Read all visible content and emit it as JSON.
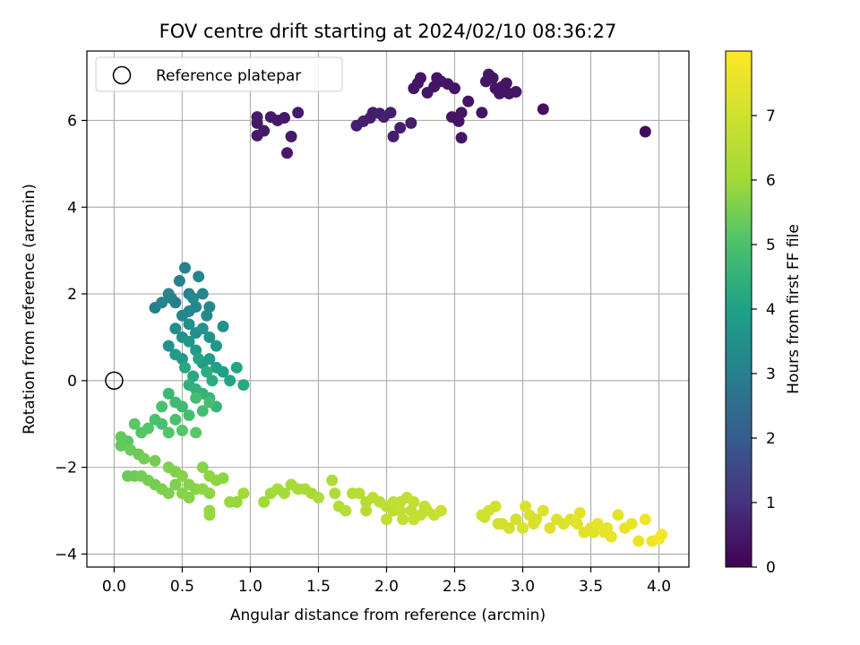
{
  "chart_data": {
    "type": "scatter",
    "title": "FOV centre drift starting at 2024/02/10 08:36:27",
    "xlabel": "Angular distance from reference (arcmin)",
    "ylabel": "Rotation from reference (arcmin)",
    "xlim": [
      -0.2,
      4.22
    ],
    "ylim": [
      -4.3,
      7.6
    ],
    "xticks": [
      "0.0",
      "0.5",
      "1.0",
      "1.5",
      "2.0",
      "2.5",
      "3.0",
      "3.5",
      "4.0"
    ],
    "xtick_values": [
      0,
      0.5,
      1,
      1.5,
      2,
      2.5,
      3,
      3.5,
      4
    ],
    "yticks": [
      "−4",
      "−2",
      "0",
      "2",
      "4",
      "6"
    ],
    "ytick_values": [
      -4,
      -2,
      0,
      2,
      4,
      6
    ],
    "grid": true,
    "legend": {
      "position": "top-left",
      "entries": [
        {
          "label": "Reference platepar",
          "marker": "open-circle"
        }
      ]
    },
    "reference_point": {
      "x": 0.0,
      "y": 0.0
    },
    "colorbar": {
      "label": "Hours from first FF file",
      "range": [
        0,
        8
      ],
      "ticks": [
        "0",
        "1",
        "2",
        "3",
        "4",
        "5",
        "6",
        "7"
      ],
      "tick_values": [
        0,
        1,
        2,
        3,
        4,
        5,
        6,
        7
      ],
      "colormap": "viridis"
    },
    "series": [
      {
        "points": [
          [
            1.05,
            6.08,
            0.5
          ],
          [
            1.05,
            5.94,
            0.5
          ],
          [
            1.05,
            5.65,
            0.5
          ],
          [
            1.1,
            5.76,
            0.5
          ],
          [
            1.15,
            6.08,
            0.5
          ],
          [
            1.2,
            6.0,
            0.5
          ],
          [
            1.25,
            6.06,
            0.5
          ],
          [
            1.27,
            5.25,
            0.5
          ],
          [
            1.3,
            5.63,
            0.5
          ],
          [
            1.35,
            6.18,
            0.5
          ],
          [
            1.78,
            5.88,
            0.6
          ],
          [
            1.83,
            5.98,
            0.6
          ],
          [
            1.88,
            6.06,
            0.6
          ],
          [
            1.9,
            6.18,
            0.6
          ],
          [
            1.95,
            6.16,
            0.6
          ],
          [
            1.98,
            6.08,
            0.6
          ],
          [
            2.03,
            6.18,
            0.6
          ],
          [
            2.05,
            5.63,
            0.6
          ],
          [
            2.1,
            5.83,
            0.6
          ],
          [
            2.18,
            5.94,
            0.6
          ],
          [
            2.2,
            6.74,
            0.4
          ],
          [
            2.23,
            6.86,
            0.4
          ],
          [
            2.25,
            6.98,
            0.4
          ],
          [
            2.3,
            6.64,
            0.4
          ],
          [
            2.35,
            6.78,
            0.4
          ],
          [
            2.37,
            6.98,
            0.4
          ],
          [
            2.4,
            6.9,
            0.4
          ],
          [
            2.45,
            6.84,
            0.4
          ],
          [
            2.48,
            6.08,
            0.4
          ],
          [
            2.5,
            6.74,
            0.4
          ],
          [
            2.53,
            5.98,
            0.4
          ],
          [
            2.55,
            6.18,
            0.4
          ],
          [
            2.55,
            5.6,
            0.4
          ],
          [
            2.6,
            6.44,
            0.4
          ],
          [
            2.7,
            6.18,
            0.4
          ],
          [
            2.73,
            6.9,
            0.4
          ],
          [
            2.75,
            7.06,
            0.4
          ],
          [
            2.78,
            6.98,
            0.4
          ],
          [
            2.8,
            6.74,
            0.4
          ],
          [
            2.83,
            6.62,
            0.4
          ],
          [
            2.85,
            6.78,
            0.4
          ],
          [
            2.88,
            6.86,
            0.4
          ],
          [
            2.9,
            6.62,
            0.4
          ],
          [
            2.95,
            6.66,
            0.4
          ],
          [
            3.15,
            6.26,
            0.3
          ],
          [
            3.9,
            5.74,
            0.2
          ],
          [
            0.3,
            1.68,
            3.0
          ],
          [
            0.35,
            1.8,
            3.1
          ],
          [
            0.4,
            2.0,
            3.2
          ],
          [
            0.42,
            1.9,
            3.1
          ],
          [
            0.45,
            1.8,
            3.0
          ],
          [
            0.48,
            2.3,
            3.1
          ],
          [
            0.5,
            1.5,
            3.2
          ],
          [
            0.52,
            2.6,
            3.1
          ],
          [
            0.55,
            2.0,
            3.1
          ],
          [
            0.55,
            1.6,
            3.2
          ],
          [
            0.58,
            1.9,
            3.3
          ],
          [
            0.6,
            1.7,
            3.2
          ],
          [
            0.62,
            2.4,
            3.2
          ],
          [
            0.65,
            2.0,
            3.2
          ],
          [
            0.68,
            1.5,
            3.3
          ],
          [
            0.7,
            1.7,
            3.3
          ],
          [
            0.45,
            1.2,
            3.4
          ],
          [
            0.5,
            1.0,
            3.5
          ],
          [
            0.55,
            1.3,
            3.5
          ],
          [
            0.6,
            1.1,
            3.4
          ],
          [
            0.65,
            1.2,
            3.6
          ],
          [
            0.7,
            1.0,
            3.6
          ],
          [
            0.75,
            0.8,
            3.7
          ],
          [
            0.8,
            1.25,
            3.6
          ],
          [
            0.4,
            0.8,
            3.6
          ],
          [
            0.45,
            0.6,
            3.8
          ],
          [
            0.5,
            0.5,
            3.8
          ],
          [
            0.55,
            0.9,
            3.7
          ],
          [
            0.6,
            0.7,
            3.8
          ],
          [
            0.65,
            0.4,
            3.9
          ],
          [
            0.7,
            0.5,
            3.9
          ],
          [
            0.75,
            0.3,
            4.0
          ],
          [
            0.8,
            0.2,
            4.0
          ],
          [
            0.85,
            0.0,
            4.1
          ],
          [
            0.9,
            0.3,
            4.1
          ],
          [
            0.95,
            -0.1,
            4.2
          ],
          [
            0.52,
            0.3,
            4.2
          ],
          [
            0.58,
            0.1,
            4.2
          ],
          [
            0.62,
            0.5,
            4.1
          ],
          [
            0.68,
            0.2,
            4.3
          ],
          [
            0.72,
            0.0,
            4.3
          ],
          [
            0.55,
            -0.1,
            4.4
          ],
          [
            0.6,
            -0.2,
            4.5
          ],
          [
            0.65,
            -0.3,
            4.5
          ],
          [
            0.7,
            -0.4,
            4.6
          ],
          [
            0.75,
            -0.6,
            4.6
          ],
          [
            0.4,
            -0.3,
            4.7
          ],
          [
            0.45,
            -0.5,
            4.8
          ],
          [
            0.5,
            -0.6,
            4.8
          ],
          [
            0.55,
            -0.8,
            4.9
          ],
          [
            0.6,
            -0.4,
            4.9
          ],
          [
            0.65,
            -0.7,
            4.9
          ],
          [
            0.7,
            -0.5,
            4.9
          ],
          [
            0.35,
            -0.6,
            5.0
          ],
          [
            0.3,
            -0.9,
            5.0
          ],
          [
            0.25,
            -1.1,
            5.1
          ],
          [
            0.2,
            -1.2,
            5.1
          ],
          [
            0.15,
            -1.0,
            5.2
          ],
          [
            0.1,
            -1.4,
            5.2
          ],
          [
            0.05,
            -1.3,
            5.3
          ],
          [
            0.05,
            -1.5,
            5.3
          ],
          [
            0.12,
            -1.6,
            5.4
          ],
          [
            0.18,
            -1.7,
            5.4
          ],
          [
            0.22,
            -1.8,
            5.5
          ],
          [
            0.3,
            -1.85,
            5.5
          ],
          [
            0.4,
            -2.0,
            5.6
          ],
          [
            0.45,
            -2.1,
            5.6
          ],
          [
            0.5,
            -2.2,
            5.7
          ],
          [
            0.55,
            -2.4,
            5.7
          ],
          [
            0.6,
            -2.5,
            5.7
          ],
          [
            0.65,
            -2.5,
            5.8
          ],
          [
            0.7,
            -2.6,
            5.8
          ],
          [
            0.65,
            -2.0,
            5.7
          ],
          [
            0.7,
            -2.2,
            5.8
          ],
          [
            0.75,
            -2.3,
            5.8
          ],
          [
            0.8,
            -2.25,
            5.8
          ],
          [
            0.7,
            -3.0,
            5.9
          ],
          [
            0.7,
            -3.1,
            5.9
          ],
          [
            0.85,
            -2.8,
            5.9
          ],
          [
            0.9,
            -2.8,
            5.9
          ],
          [
            0.95,
            -2.6,
            6.0
          ],
          [
            0.1,
            -2.2,
            5.4
          ],
          [
            0.15,
            -2.2,
            5.4
          ],
          [
            0.2,
            -2.2,
            5.5
          ],
          [
            0.25,
            -2.3,
            5.5
          ],
          [
            0.3,
            -2.4,
            5.5
          ],
          [
            0.35,
            -2.5,
            5.6
          ],
          [
            0.4,
            -2.6,
            5.6
          ],
          [
            0.45,
            -2.4,
            5.6
          ],
          [
            0.5,
            -2.6,
            5.7
          ],
          [
            0.55,
            -2.7,
            5.7
          ],
          [
            0.35,
            -1.0,
            5.0
          ],
          [
            0.4,
            -1.2,
            5.1
          ],
          [
            0.45,
            -0.9,
            5.0
          ],
          [
            0.5,
            -1.15,
            5.1
          ],
          [
            0.6,
            -1.2,
            5.2
          ],
          [
            1.1,
            -2.8,
            6.0
          ],
          [
            1.15,
            -2.6,
            6.0
          ],
          [
            1.2,
            -2.5,
            6.1
          ],
          [
            1.25,
            -2.6,
            6.1
          ],
          [
            1.3,
            -2.4,
            6.1
          ],
          [
            1.35,
            -2.5,
            6.2
          ],
          [
            1.4,
            -2.5,
            6.2
          ],
          [
            1.45,
            -2.6,
            6.2
          ],
          [
            1.5,
            -2.7,
            6.3
          ],
          [
            1.6,
            -2.3,
            6.3
          ],
          [
            1.62,
            -2.6,
            6.3
          ],
          [
            1.65,
            -2.9,
            6.4
          ],
          [
            1.7,
            -3.0,
            6.4
          ],
          [
            1.75,
            -2.6,
            6.4
          ],
          [
            1.8,
            -2.6,
            6.5
          ],
          [
            1.85,
            -2.8,
            6.5
          ],
          [
            1.85,
            -3.0,
            6.5
          ],
          [
            1.9,
            -2.7,
            6.6
          ],
          [
            1.95,
            -2.8,
            6.6
          ],
          [
            2.0,
            -2.9,
            6.6
          ],
          [
            2.05,
            -3.0,
            6.6
          ],
          [
            2.1,
            -2.8,
            6.7
          ],
          [
            2.12,
            -3.2,
            6.7
          ],
          [
            2.15,
            -2.7,
            6.7
          ],
          [
            2.18,
            -3.0,
            6.7
          ],
          [
            2.2,
            -2.8,
            6.8
          ],
          [
            2.25,
            -3.1,
            6.8
          ],
          [
            2.28,
            -2.9,
            6.8
          ],
          [
            2.3,
            -3.0,
            6.8
          ],
          [
            2.35,
            -3.1,
            6.8
          ],
          [
            2.4,
            -3.0,
            6.9
          ],
          [
            2.0,
            -3.2,
            6.7
          ],
          [
            2.05,
            -2.8,
            6.7
          ],
          [
            2.2,
            -3.2,
            6.8
          ],
          [
            2.1,
            -3.0,
            6.7
          ],
          [
            2.7,
            -3.1,
            7.0
          ],
          [
            2.75,
            -3.0,
            7.0
          ],
          [
            2.8,
            -2.9,
            7.1
          ],
          [
            2.85,
            -3.3,
            7.1
          ],
          [
            2.9,
            -3.4,
            7.1
          ],
          [
            2.95,
            -3.2,
            7.1
          ],
          [
            3.0,
            -3.4,
            7.2
          ],
          [
            3.02,
            -2.9,
            7.2
          ],
          [
            3.05,
            -3.1,
            7.2
          ],
          [
            3.1,
            -3.2,
            7.2
          ],
          [
            3.15,
            -3.0,
            7.3
          ],
          [
            3.2,
            -3.4,
            7.3
          ],
          [
            3.25,
            -3.2,
            7.3
          ],
          [
            3.3,
            -3.3,
            7.3
          ],
          [
            3.35,
            -3.2,
            7.4
          ],
          [
            3.4,
            -3.3,
            7.4
          ],
          [
            3.45,
            -3.5,
            7.4
          ],
          [
            3.5,
            -3.4,
            7.4
          ],
          [
            3.55,
            -3.3,
            7.5
          ],
          [
            3.6,
            -3.5,
            7.5
          ],
          [
            3.65,
            -3.6,
            7.5
          ],
          [
            3.7,
            -3.1,
            7.5
          ],
          [
            3.75,
            -3.4,
            7.6
          ],
          [
            3.8,
            -3.3,
            7.6
          ],
          [
            3.85,
            -3.7,
            7.6
          ],
          [
            3.9,
            -3.2,
            7.7
          ],
          [
            3.95,
            -3.7,
            7.7
          ],
          [
            4.0,
            -3.65,
            7.8
          ],
          [
            4.02,
            -3.55,
            7.8
          ],
          [
            3.42,
            -3.05,
            7.4
          ],
          [
            3.62,
            -3.4,
            7.5
          ],
          [
            3.52,
            -3.5,
            7.4
          ],
          [
            3.08,
            -3.3,
            7.2
          ],
          [
            2.82,
            -3.3,
            7.1
          ],
          [
            2.72,
            -3.15,
            7.0
          ]
        ]
      }
    ]
  }
}
